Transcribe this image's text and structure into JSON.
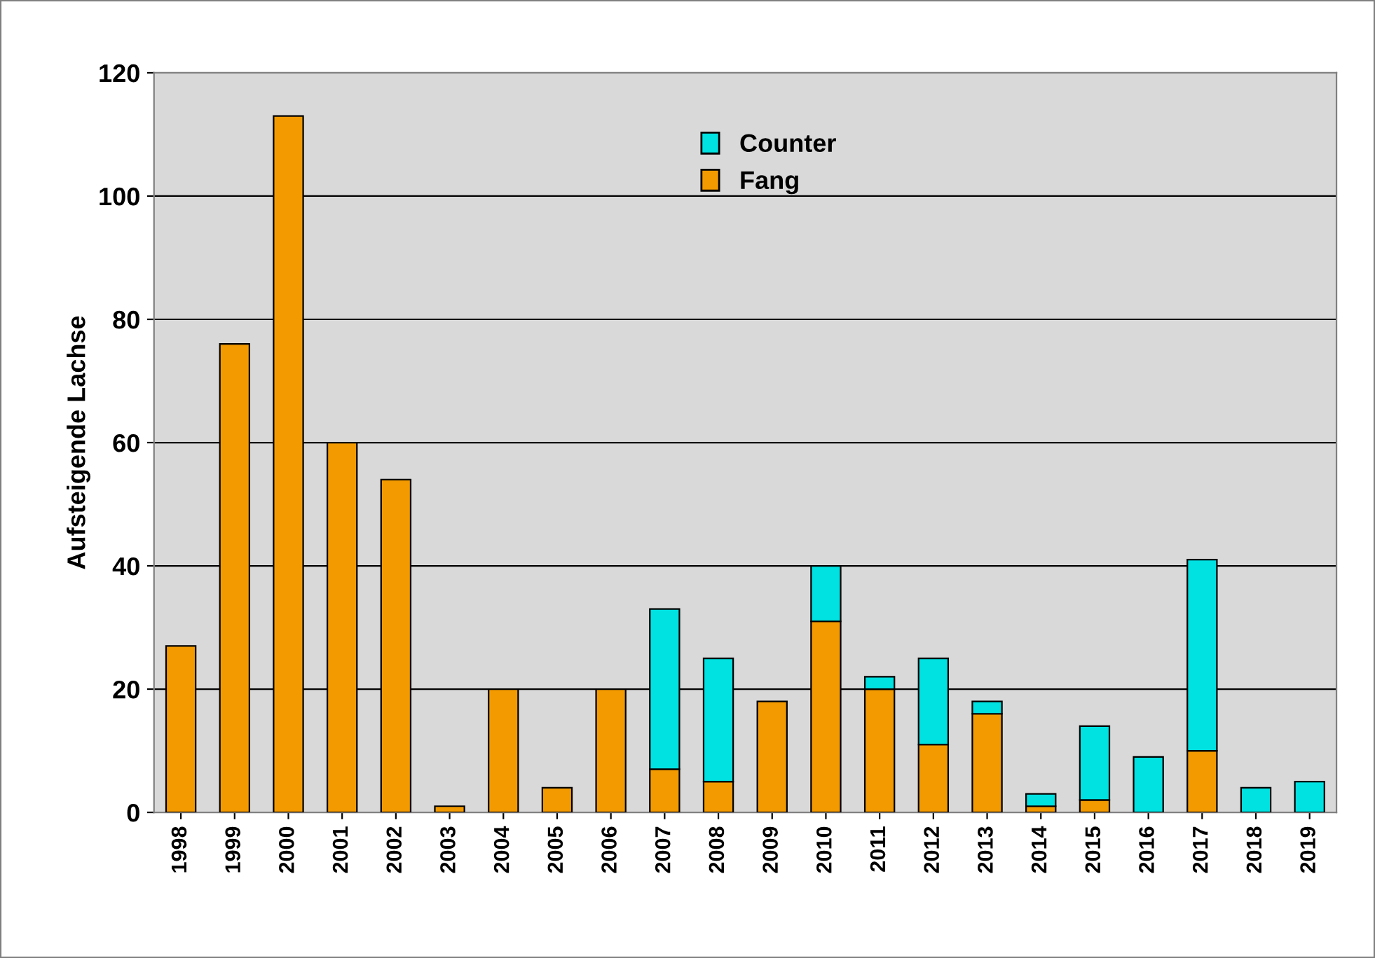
{
  "chart_data": {
    "type": "bar",
    "stacked": true,
    "ylabel": "Aufsteigende Lachse",
    "categories": [
      "1998",
      "1999",
      "2000",
      "2001",
      "2002",
      "2003",
      "2004",
      "2005",
      "2006",
      "2007",
      "2008",
      "2009",
      "2010",
      "2011",
      "2012",
      "2013",
      "2014",
      "2015",
      "2016",
      "2017",
      "2018",
      "2019"
    ],
    "series": [
      {
        "name": "Fang",
        "color": "#f39a00",
        "values": [
          27,
          76,
          113,
          60,
          54,
          1,
          20,
          4,
          20,
          7,
          5,
          18,
          31,
          20,
          11,
          16,
          1,
          2,
          0,
          10,
          0,
          0
        ]
      },
      {
        "name": "Counter",
        "color": "#00e1e1",
        "values": [
          0,
          0,
          0,
          0,
          0,
          0,
          0,
          0,
          0,
          26,
          20,
          0,
          9,
          2,
          14,
          2,
          2,
          12,
          9,
          31,
          4,
          5
        ]
      }
    ],
    "ylim": [
      0,
      120
    ],
    "yticks": [
      0,
      20,
      40,
      60,
      80,
      100,
      120
    ],
    "grid": "y",
    "legend": "top"
  }
}
